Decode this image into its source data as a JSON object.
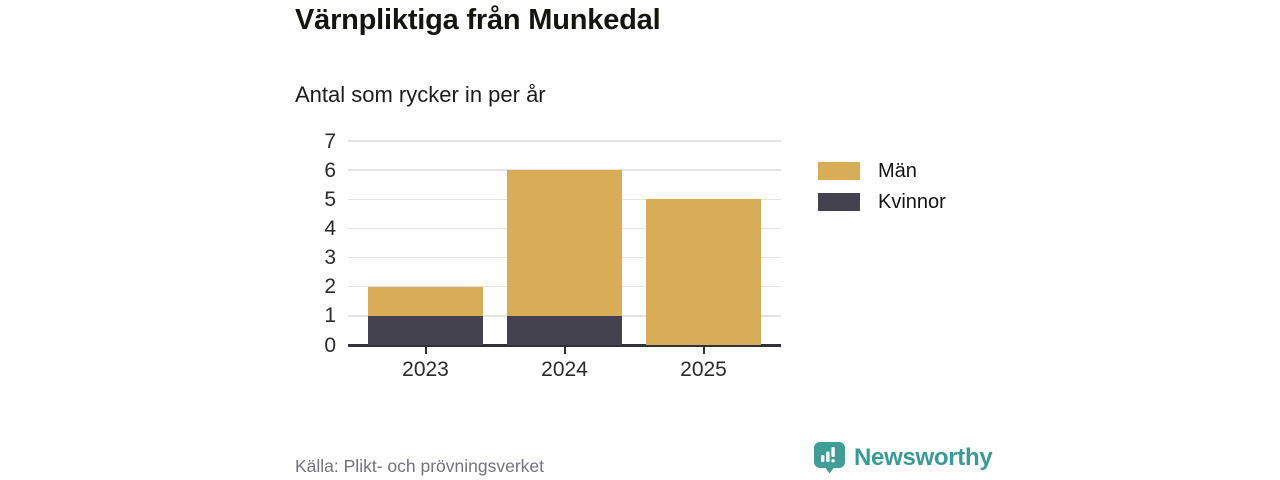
{
  "header": {
    "title": "Värnpliktiga från Munkedal",
    "subtitle": "Antal som rycker in per år"
  },
  "chart_data": {
    "type": "bar",
    "stacked": true,
    "title": "Värnpliktiga från Munkedal",
    "subtitle": "Antal som rycker in per år",
    "categories": [
      "2023",
      "2024",
      "2025"
    ],
    "series": [
      {
        "name": "Kvinnor",
        "color": "#454250",
        "values": [
          1,
          1,
          0
        ]
      },
      {
        "name": "Män",
        "color": "#d9ad58",
        "values": [
          1,
          5,
          5
        ]
      }
    ],
    "totals": [
      2,
      6,
      5
    ],
    "ylim": [
      0,
      7
    ],
    "yticks": [
      0,
      1,
      2,
      3,
      4,
      5,
      6,
      7
    ],
    "xlabel": "",
    "ylabel": "",
    "grid": true,
    "legend_position": "right",
    "legend_order": [
      "Män",
      "Kvinnor"
    ]
  },
  "footer": {
    "source": "Källa: Plikt- och prövningsverket",
    "brand": "Newsworthy"
  },
  "colors": {
    "men": "#d9ad58",
    "women": "#454250",
    "brand_teal": "#3a9b96",
    "grid": "#e4e4e4",
    "axis": "#32303a"
  }
}
